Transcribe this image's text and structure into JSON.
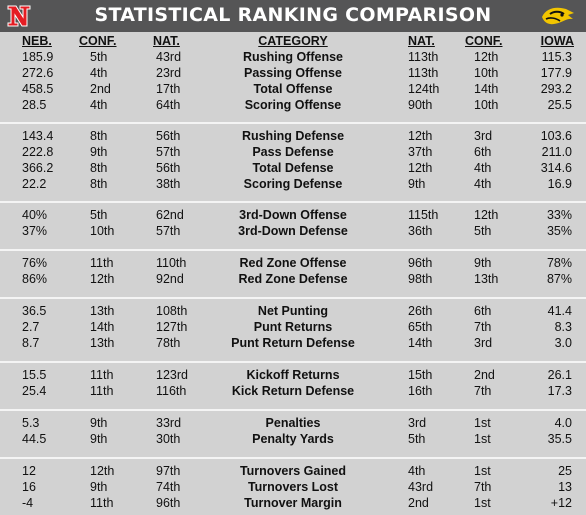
{
  "header": {
    "title": "STATISTICAL RANKING COMPARISON",
    "left_logo": "nebraska-n-logo",
    "right_logo": "iowa-hawkeye-logo",
    "bg_color": "#555556",
    "left_logo_color": "#e41c23",
    "right_logo_color": "#f2c500"
  },
  "columns": {
    "neb": "NEB.",
    "conf": "CONF.",
    "nat": "NAT.",
    "category": "CATEGORY",
    "nat2": "NAT.",
    "conf2": "CONF.",
    "iowa": "IOWA"
  },
  "sections": [
    {
      "rows": [
        {
          "neb": "185.9",
          "neb_conf": "5th",
          "neb_nat": "43rd",
          "category": "Rushing Offense",
          "iowa_nat": "113th",
          "iowa_conf": "12th",
          "iowa": "115.3"
        },
        {
          "neb": "272.6",
          "neb_conf": "4th",
          "neb_nat": "23rd",
          "category": "Passing Offense",
          "iowa_nat": "113th",
          "iowa_conf": "10th",
          "iowa": "177.9"
        },
        {
          "neb": "458.5",
          "neb_conf": "2nd",
          "neb_nat": "17th",
          "category": "Total Offense",
          "iowa_nat": "124th",
          "iowa_conf": "14th",
          "iowa": "293.2"
        },
        {
          "neb": "28.5",
          "neb_conf": "4th",
          "neb_nat": "64th",
          "category": "Scoring Offense",
          "iowa_nat": "90th",
          "iowa_conf": "10th",
          "iowa": "25.5"
        }
      ]
    },
    {
      "rows": [
        {
          "neb": "143.4",
          "neb_conf": "8th",
          "neb_nat": "56th",
          "category": "Rushing Defense",
          "iowa_nat": "12th",
          "iowa_conf": "3rd",
          "iowa": "103.6"
        },
        {
          "neb": "222.8",
          "neb_conf": "9th",
          "neb_nat": "57th",
          "category": "Pass Defense",
          "iowa_nat": "37th",
          "iowa_conf": "6th",
          "iowa": "211.0"
        },
        {
          "neb": "366.2",
          "neb_conf": "8th",
          "neb_nat": "56th",
          "category": "Total Defense",
          "iowa_nat": "12th",
          "iowa_conf": "4th",
          "iowa": "314.6"
        },
        {
          "neb": "22.2",
          "neb_conf": "8th",
          "neb_nat": "38th",
          "category": "Scoring Defense",
          "iowa_nat": "9th",
          "iowa_conf": "4th",
          "iowa": "16.9"
        }
      ]
    },
    {
      "rows": [
        {
          "neb": "40%",
          "neb_conf": "5th",
          "neb_nat": "62nd",
          "category": "3rd-Down Offense",
          "iowa_nat": "115th",
          "iowa_conf": "12th",
          "iowa": "33%"
        },
        {
          "neb": "37%",
          "neb_conf": "10th",
          "neb_nat": "57th",
          "category": "3rd-Down Defense",
          "iowa_nat": "36th",
          "iowa_conf": "5th",
          "iowa": "35%"
        }
      ]
    },
    {
      "rows": [
        {
          "neb": "76%",
          "neb_conf": "11th",
          "neb_nat": "110th",
          "category": "Red Zone Offense",
          "iowa_nat": "96th",
          "iowa_conf": "9th",
          "iowa": "78%"
        },
        {
          "neb": "86%",
          "neb_conf": "12th",
          "neb_nat": "92nd",
          "category": "Red Zone Defense",
          "iowa_nat": "98th",
          "iowa_conf": "13th",
          "iowa": "87%"
        }
      ]
    },
    {
      "rows": [
        {
          "neb": "36.5",
          "neb_conf": "13th",
          "neb_nat": "108th",
          "category": "Net Punting",
          "iowa_nat": "26th",
          "iowa_conf": "6th",
          "iowa": "41.4"
        },
        {
          "neb": "2.7",
          "neb_conf": "14th",
          "neb_nat": "127th",
          "category": "Punt Returns",
          "iowa_nat": "65th",
          "iowa_conf": "7th",
          "iowa": "8.3"
        },
        {
          "neb": "8.7",
          "neb_conf": "13th",
          "neb_nat": "78th",
          "category": "Punt Return Defense",
          "iowa_nat": "14th",
          "iowa_conf": "3rd",
          "iowa": "3.0"
        }
      ]
    },
    {
      "rows": [
        {
          "neb": "15.5",
          "neb_conf": "11th",
          "neb_nat": "123rd",
          "category": "Kickoff Returns",
          "iowa_nat": "15th",
          "iowa_conf": "2nd",
          "iowa": "26.1"
        },
        {
          "neb": "25.4",
          "neb_conf": "11th",
          "neb_nat": "116th",
          "category": "Kick Return Defense",
          "iowa_nat": "16th",
          "iowa_conf": "7th",
          "iowa": "17.3"
        }
      ]
    },
    {
      "rows": [
        {
          "neb": "5.3",
          "neb_conf": "9th",
          "neb_nat": "33rd",
          "category": "Penalties",
          "iowa_nat": "3rd",
          "iowa_conf": "1st",
          "iowa": "4.0"
        },
        {
          "neb": "44.5",
          "neb_conf": "9th",
          "neb_nat": "30th",
          "category": "Penalty Yards",
          "iowa_nat": "5th",
          "iowa_conf": "1st",
          "iowa": "35.5"
        }
      ]
    },
    {
      "rows": [
        {
          "neb": "12",
          "neb_conf": "12th",
          "neb_nat": "97th",
          "category": "Turnovers Gained",
          "iowa_nat": "4th",
          "iowa_conf": "1st",
          "iowa": "25"
        },
        {
          "neb": "16",
          "neb_conf": "9th",
          "neb_nat": "74th",
          "category": "Turnovers Lost",
          "iowa_nat": "43rd",
          "iowa_conf": "7th",
          "iowa": "13"
        },
        {
          "neb": "-4",
          "neb_conf": "11th",
          "neb_nat": "96th",
          "category": "Turnover Margin",
          "iowa_nat": "2nd",
          "iowa_conf": "1st",
          "iowa": "+12"
        }
      ]
    }
  ]
}
